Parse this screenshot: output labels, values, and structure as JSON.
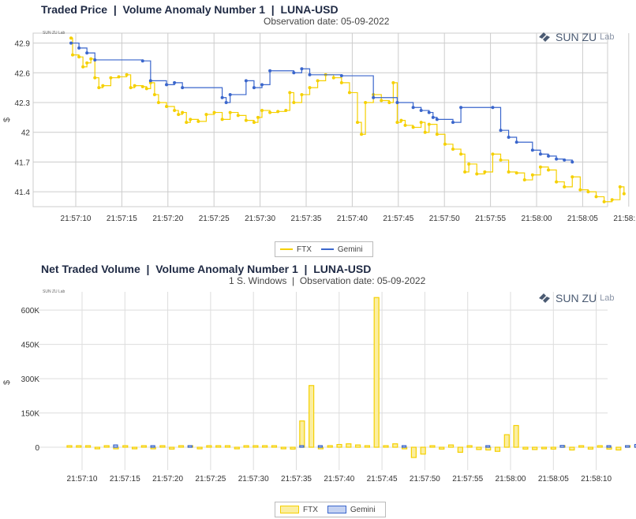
{
  "charts": {
    "price": {
      "title": "Traded Price  |  Volume Anomaly Number 1  |  LUNA-USD",
      "subtitle": "Observation date: 05-09-2022",
      "ylabel": "$",
      "yticks": [
        "42.9",
        "42.6",
        "42.3",
        "42",
        "41.7",
        "41.4"
      ]
    },
    "volume": {
      "title": "Net Traded Volume  |  Volume Anomaly Number 1  |  LUNA-USD",
      "subtitle": "1 S. Windows  |  Observation date: 05-09-2022",
      "ylabel": "$",
      "yticks": [
        "600K",
        "450K",
        "300K",
        "150K",
        "0"
      ]
    }
  },
  "xticks": [
    "21:57:10",
    "21:57:15",
    "21:57:20",
    "21:57:25",
    "21:57:30",
    "21:57:35",
    "21:57:40",
    "21:57:45",
    "21:57:50",
    "21:57:55",
    "21:58:00",
    "21:58:05",
    "21:58:10"
  ],
  "legend": {
    "ftx": "FTX",
    "gemini": "Gemini"
  },
  "logo": {
    "name": "SUN ZU",
    "suffix": "Lab",
    "small": "SUN ZU Lab"
  },
  "colors": {
    "ftx": "#f5d000",
    "gemini": "#3a66cc",
    "title": "#1f2a44"
  },
  "chart_data": [
    {
      "type": "line",
      "title": "Traded Price  |  Volume Anomaly Number 1  |  LUNA-USD",
      "subtitle": "Observation date: 05-09-2022",
      "ylabel": "$",
      "ylim": [
        41.25,
        43.0
      ],
      "series": [
        {
          "name": "FTX",
          "points": [
            [
              0,
              42.95
            ],
            [
              0.2,
              42.78
            ],
            [
              1,
              42.76
            ],
            [
              1.5,
              42.66
            ],
            [
              2,
              42.7
            ],
            [
              2.5,
              42.74
            ],
            [
              3,
              42.55
            ],
            [
              3.5,
              42.45
            ],
            [
              4,
              42.47
            ],
            [
              5,
              42.55
            ],
            [
              6,
              42.56
            ],
            [
              7,
              42.58
            ],
            [
              7.5,
              42.45
            ],
            [
              8,
              42.47
            ],
            [
              9,
              42.46
            ],
            [
              9.5,
              42.44
            ],
            [
              10,
              42.5
            ],
            [
              10.5,
              42.38
            ],
            [
              11,
              42.3
            ],
            [
              12,
              42.26
            ],
            [
              13,
              42.22
            ],
            [
              13.5,
              42.18
            ],
            [
              14,
              42.2
            ],
            [
              14.5,
              42.1
            ],
            [
              15,
              42.13
            ],
            [
              16,
              42.11
            ],
            [
              17,
              42.18
            ],
            [
              18,
              42.2
            ],
            [
              19,
              42.13
            ],
            [
              20,
              42.2
            ],
            [
              21,
              42.17
            ],
            [
              22,
              42.12
            ],
            [
              23,
              42.1
            ],
            [
              23.5,
              42.15
            ],
            [
              24,
              42.22
            ],
            [
              25,
              42.2
            ],
            [
              26,
              42.21
            ],
            [
              27,
              42.22
            ],
            [
              27.5,
              42.4
            ],
            [
              28,
              42.3
            ],
            [
              29,
              42.38
            ],
            [
              30,
              42.45
            ],
            [
              31,
              42.52
            ],
            [
              32,
              42.58
            ],
            [
              33,
              42.55
            ],
            [
              34,
              42.5
            ],
            [
              35,
              42.4
            ],
            [
              36,
              42.1
            ],
            [
              36.5,
              41.98
            ],
            [
              37,
              42.3
            ],
            [
              38,
              42.38
            ],
            [
              39,
              42.32
            ],
            [
              40,
              42.3
            ],
            [
              40.5,
              42.5
            ],
            [
              41,
              42.1
            ],
            [
              41.5,
              42.12
            ],
            [
              42,
              42.07
            ],
            [
              43,
              42.05
            ],
            [
              44,
              42.1
            ],
            [
              44.5,
              42.0
            ],
            [
              45,
              42.08
            ],
            [
              46,
              41.98
            ],
            [
              47,
              41.88
            ],
            [
              48,
              41.83
            ],
            [
              49,
              41.78
            ],
            [
              49.5,
              41.6
            ],
            [
              50,
              41.68
            ],
            [
              51,
              41.58
            ],
            [
              52,
              41.6
            ],
            [
              53,
              41.78
            ],
            [
              54,
              41.72
            ],
            [
              55,
              41.6
            ],
            [
              56,
              41.59
            ],
            [
              57,
              41.52
            ],
            [
              58,
              41.57
            ],
            [
              59,
              41.65
            ],
            [
              60,
              41.62
            ],
            [
              61,
              41.5
            ],
            [
              62,
              41.45
            ],
            [
              63,
              41.55
            ],
            [
              64,
              41.42
            ],
            [
              65,
              41.4
            ],
            [
              66,
              41.35
            ],
            [
              67,
              41.3
            ],
            [
              68,
              41.32
            ],
            [
              69,
              41.45
            ],
            [
              69.5,
              41.38
            ]
          ]
        },
        {
          "name": "Gemini",
          "points": [
            [
              0,
              42.9
            ],
            [
              1,
              42.85
            ],
            [
              2,
              42.8
            ],
            [
              3,
              42.73
            ],
            [
              9,
              42.72
            ],
            [
              10,
              42.52
            ],
            [
              12,
              42.48
            ],
            [
              13,
              42.5
            ],
            [
              14,
              42.45
            ],
            [
              19,
              42.35
            ],
            [
              19.5,
              42.3
            ],
            [
              20,
              42.38
            ],
            [
              22,
              42.52
            ],
            [
              23,
              42.45
            ],
            [
              24,
              42.48
            ],
            [
              25,
              42.62
            ],
            [
              28,
              42.6
            ],
            [
              29,
              42.64
            ],
            [
              30,
              42.58
            ],
            [
              34,
              42.57
            ],
            [
              38,
              42.35
            ],
            [
              41,
              42.3
            ],
            [
              43,
              42.25
            ],
            [
              44,
              42.22
            ],
            [
              45,
              42.2
            ],
            [
              45.5,
              42.15
            ],
            [
              46,
              42.13
            ],
            [
              48,
              42.1
            ],
            [
              49,
              42.25
            ],
            [
              53,
              42.25
            ],
            [
              54,
              42.02
            ],
            [
              55,
              41.95
            ],
            [
              56,
              41.9
            ],
            [
              58,
              41.82
            ],
            [
              59,
              41.78
            ],
            [
              60,
              41.76
            ],
            [
              61,
              41.73
            ],
            [
              62,
              41.72
            ],
            [
              63,
              41.7
            ]
          ]
        }
      ]
    },
    {
      "type": "bar",
      "title": "Net Traded Volume  |  Volume Anomaly Number 1  |  LUNA-USD",
      "subtitle": "1 S. Windows  |  Observation date: 05-09-2022",
      "ylabel": "$",
      "ylim": [
        -100000,
        680000
      ],
      "series": [
        {
          "name": "FTX",
          "points": [
            [
              0,
              3000
            ],
            [
              1,
              4000
            ],
            [
              2,
              6000
            ],
            [
              3,
              -4000
            ],
            [
              4,
              5000
            ],
            [
              5,
              -5000
            ],
            [
              6,
              4000
            ],
            [
              7,
              -3000
            ],
            [
              8,
              3000
            ],
            [
              9,
              -5000
            ],
            [
              10,
              6000
            ],
            [
              11,
              -8000
            ],
            [
              12,
              4000
            ],
            [
              13,
              3000
            ],
            [
              14,
              -4000
            ],
            [
              15,
              5000
            ],
            [
              16,
              4000
            ],
            [
              17,
              3000
            ],
            [
              18,
              -4000
            ],
            [
              19,
              4000
            ],
            [
              20,
              5000
            ],
            [
              21,
              4000
            ],
            [
              22,
              5000
            ],
            [
              23,
              -5000
            ],
            [
              24,
              -8000
            ],
            [
              25,
              115000
            ],
            [
              26,
              270000
            ],
            [
              27,
              -6000
            ],
            [
              28,
              6000
            ],
            [
              29,
              12000
            ],
            [
              30,
              15000
            ],
            [
              31,
              10000
            ],
            [
              32,
              4000
            ],
            [
              33,
              655000
            ],
            [
              34,
              3000
            ],
            [
              35,
              15000
            ],
            [
              36,
              -6000
            ],
            [
              37,
              -45000
            ],
            [
              38,
              -30000
            ],
            [
              39,
              5000
            ],
            [
              40,
              -8000
            ],
            [
              41,
              10000
            ],
            [
              42,
              -22000
            ],
            [
              43,
              6000
            ],
            [
              44,
              -10000
            ],
            [
              45,
              -12000
            ],
            [
              46,
              -18000
            ],
            [
              47,
              55000
            ],
            [
              48,
              95000
            ],
            [
              49,
              -8000
            ],
            [
              50,
              -10000
            ],
            [
              51,
              -6000
            ],
            [
              52,
              -8000
            ],
            [
              53,
              5000
            ],
            [
              54,
              -12000
            ],
            [
              55,
              5000
            ],
            [
              56,
              -8000
            ],
            [
              57,
              6000
            ],
            [
              58,
              -8000
            ],
            [
              59,
              -12000
            ],
            [
              60,
              6000
            ],
            [
              61,
              5000
            ]
          ]
        },
        {
          "name": "Gemini",
          "points": [
            [
              5,
              10000
            ],
            [
              9,
              5000
            ],
            [
              13,
              6000
            ],
            [
              25,
              4000
            ],
            [
              27,
              5000
            ],
            [
              36,
              6000
            ],
            [
              45,
              4000
            ],
            [
              53,
              8000
            ],
            [
              58,
              5000
            ],
            [
              60,
              6000
            ],
            [
              61,
              12000
            ]
          ]
        }
      ]
    }
  ]
}
